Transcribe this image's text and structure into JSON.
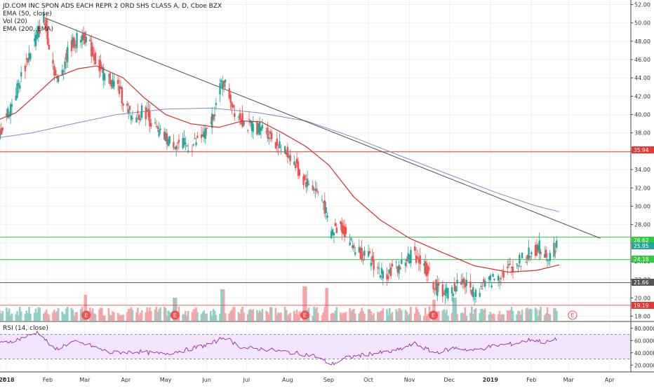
{
  "legend": {
    "title": "JD.COM INC SPON ADS EACH REPR 2 ORD SHS CLASS A, D, Cboe BZX",
    "ema50": "EMA (50, close)",
    "vol": "Vol (20)",
    "ema200": "EMA (200, EMA)",
    "rsi": "RSI (14, close)"
  },
  "price_axis": {
    "ticks": [
      "52.00",
      "50.00",
      "48.00",
      "46.00",
      "44.00",
      "42.00",
      "40.00",
      "38.00",
      "36.00",
      "34.00",
      "32.00",
      "30.00",
      "28.00",
      "26.00",
      "24.00",
      "22.00",
      "20.00",
      "18.00"
    ]
  },
  "rsi_axis": {
    "ticks": [
      "80.0000",
      "60.0000",
      "40.0000",
      "20.0000"
    ]
  },
  "time_axis": {
    "labels": [
      "7",
      "2018",
      "Feb",
      "Mar",
      "Apr",
      "May",
      "Jun",
      "Jul",
      "Aug",
      "Sep",
      "Oct",
      "Nov",
      "Dec",
      "2019",
      "Feb",
      "Mar",
      "Apr"
    ],
    "bold": [
      "2018",
      "2019"
    ]
  },
  "price_labels": [
    {
      "text": "35.94",
      "color": "#e53935"
    },
    {
      "text": "26.62",
      "color": "#2ecc40"
    },
    {
      "text": "25.95",
      "color": "#26a69a"
    },
    {
      "text": "24.18",
      "color": "#2ecc40"
    },
    {
      "text": "21.66",
      "color": "#555555"
    },
    {
      "text": "19.19",
      "color": "#e53935"
    }
  ],
  "earnings": [
    {
      "label": "E",
      "date": "2018-03-02"
    },
    {
      "label": "E",
      "date": "2018-05-08"
    },
    {
      "label": "E",
      "date": "2018-08-14"
    },
    {
      "label": "E",
      "date": "2018-11-19"
    },
    {
      "label": "E",
      "date": "2019-03-04"
    }
  ],
  "chart_data": {
    "type": "candlestick",
    "title": "JD.COM INC SPON ADS EACH REPR 2 ORD SHS CLASS A, D, Cboe BZX",
    "ylim": [
      17.5,
      52.5
    ],
    "x_range": [
      "2017-12-27",
      "2019-04-17"
    ],
    "price_path": [
      {
        "date": "2017-12-27",
        "close": 38.0
      },
      {
        "date": "2018-01-08",
        "close": 42.5
      },
      {
        "date": "2018-01-19",
        "close": 47.0
      },
      {
        "date": "2018-01-29",
        "close": 50.5
      },
      {
        "date": "2018-02-08",
        "close": 43.5
      },
      {
        "date": "2018-02-18",
        "close": 47.5
      },
      {
        "date": "2018-02-28",
        "close": 48.8
      },
      {
        "date": "2018-03-14",
        "close": 44.5
      },
      {
        "date": "2018-03-26",
        "close": 43.0
      },
      {
        "date": "2018-04-05",
        "close": 39.5
      },
      {
        "date": "2018-04-15",
        "close": 40.5
      },
      {
        "date": "2018-04-25",
        "close": 38.0
      },
      {
        "date": "2018-05-05",
        "close": 37.0
      },
      {
        "date": "2018-05-20",
        "close": 36.5
      },
      {
        "date": "2018-06-01",
        "close": 38.0
      },
      {
        "date": "2018-06-09",
        "close": 41.5
      },
      {
        "date": "2018-06-13",
        "close": 44.0
      },
      {
        "date": "2018-06-22",
        "close": 40.5
      },
      {
        "date": "2018-07-01",
        "close": 38.8
      },
      {
        "date": "2018-07-15",
        "close": 38.5
      },
      {
        "date": "2018-07-25",
        "close": 36.5
      },
      {
        "date": "2018-08-03",
        "close": 35.5
      },
      {
        "date": "2018-08-12",
        "close": 33.0
      },
      {
        "date": "2018-08-21",
        "close": 32.0
      },
      {
        "date": "2018-08-28",
        "close": 30.5
      },
      {
        "date": "2018-09-02",
        "close": 27.0
      },
      {
        "date": "2018-09-10",
        "close": 28.0
      },
      {
        "date": "2018-09-20",
        "close": 25.5
      },
      {
        "date": "2018-09-30",
        "close": 24.5
      },
      {
        "date": "2018-10-12",
        "close": 22.5
      },
      {
        "date": "2018-10-25",
        "close": 23.5
      },
      {
        "date": "2018-11-04",
        "close": 25.0
      },
      {
        "date": "2018-11-14",
        "close": 23.0
      },
      {
        "date": "2018-11-21",
        "close": 21.0
      },
      {
        "date": "2018-12-01",
        "close": 20.5
      },
      {
        "date": "2018-12-10",
        "close": 22.0
      },
      {
        "date": "2018-12-20",
        "close": 20.5
      },
      {
        "date": "2018-12-28",
        "close": 21.5
      },
      {
        "date": "2019-01-08",
        "close": 22.5
      },
      {
        "date": "2019-01-18",
        "close": 23.5
      },
      {
        "date": "2019-01-28",
        "close": 24.5
      },
      {
        "date": "2019-02-07",
        "close": 25.5
      },
      {
        "date": "2019-02-14",
        "close": 24.5
      },
      {
        "date": "2019-02-20",
        "close": 25.95
      }
    ],
    "ema50": [
      {
        "date": "2017-12-27",
        "value": 39.5
      },
      {
        "date": "2018-01-08",
        "value": 40.2
      },
      {
        "date": "2018-01-22",
        "value": 42.0
      },
      {
        "date": "2018-02-06",
        "value": 44.0
      },
      {
        "date": "2018-02-24",
        "value": 45.0
      },
      {
        "date": "2018-03-10",
        "value": 45.3
      },
      {
        "date": "2018-03-30",
        "value": 44.0
      },
      {
        "date": "2018-04-15",
        "value": 41.8
      },
      {
        "date": "2018-05-01",
        "value": 40.0
      },
      {
        "date": "2018-05-20",
        "value": 39.0
      },
      {
        "date": "2018-06-10",
        "value": 38.6
      },
      {
        "date": "2018-06-28",
        "value": 39.3
      },
      {
        "date": "2018-07-12",
        "value": 39.2
      },
      {
        "date": "2018-07-28",
        "value": 38.0
      },
      {
        "date": "2018-08-15",
        "value": 36.5
      },
      {
        "date": "2018-09-01",
        "value": 34.5
      },
      {
        "date": "2018-09-20",
        "value": 31.0
      },
      {
        "date": "2018-10-10",
        "value": 28.5
      },
      {
        "date": "2018-11-01",
        "value": 26.5
      },
      {
        "date": "2018-11-25",
        "value": 25.0
      },
      {
        "date": "2018-12-20",
        "value": 23.5
      },
      {
        "date": "2019-01-15",
        "value": 22.8
      },
      {
        "date": "2019-02-05",
        "value": 23.0
      },
      {
        "date": "2019-02-22",
        "value": 23.6
      }
    ],
    "ema200": [
      {
        "date": "2017-12-27",
        "value": 37.5
      },
      {
        "date": "2018-01-20",
        "value": 38.0
      },
      {
        "date": "2018-02-20",
        "value": 39.0
      },
      {
        "date": "2018-03-25",
        "value": 40.0
      },
      {
        "date": "2018-05-01",
        "value": 40.6
      },
      {
        "date": "2018-06-05",
        "value": 40.7
      },
      {
        "date": "2018-07-10",
        "value": 40.2
      },
      {
        "date": "2018-08-15",
        "value": 39.3
      },
      {
        "date": "2018-09-20",
        "value": 37.5
      },
      {
        "date": "2018-10-25",
        "value": 35.5
      },
      {
        "date": "2018-11-30",
        "value": 33.5
      },
      {
        "date": "2019-01-05",
        "value": 31.5
      },
      {
        "date": "2019-02-05",
        "value": 30.0
      },
      {
        "date": "2019-02-22",
        "value": 29.4
      }
    ],
    "trendline": [
      {
        "date": "2018-01-29",
        "value": 50.6
      },
      {
        "date": "2019-03-25",
        "value": 26.5
      }
    ],
    "hlines": [
      {
        "value": 35.94,
        "color": "#e53935"
      },
      {
        "value": 26.62,
        "color": "#2ecc40"
      },
      {
        "value": 24.18,
        "color": "#2ecc40"
      },
      {
        "value": 21.66,
        "color": "#555555"
      }
    ],
    "volume_spikes": [
      {
        "date": "2018-03-02",
        "rel": 0.62
      },
      {
        "date": "2018-05-08",
        "rel": 0.55
      },
      {
        "date": "2018-06-13",
        "rel": 0.75
      },
      {
        "date": "2018-08-14",
        "rel": 0.82
      },
      {
        "date": "2018-08-31",
        "rel": 0.78
      },
      {
        "date": "2018-11-19",
        "rel": 0.5
      },
      {
        "date": "2018-12-05",
        "rel": 0.55
      }
    ],
    "rsi": {
      "ylim": [
        10,
        90
      ],
      "band": [
        30,
        70
      ],
      "path": [
        {
          "date": "2017-12-27",
          "value": 55
        },
        {
          "date": "2018-01-10",
          "value": 62
        },
        {
          "date": "2018-01-25",
          "value": 74
        },
        {
          "date": "2018-02-06",
          "value": 45
        },
        {
          "date": "2018-02-20",
          "value": 58
        },
        {
          "date": "2018-03-05",
          "value": 52
        },
        {
          "date": "2018-03-20",
          "value": 40
        },
        {
          "date": "2018-04-10",
          "value": 42
        },
        {
          "date": "2018-04-28",
          "value": 38
        },
        {
          "date": "2018-05-15",
          "value": 44
        },
        {
          "date": "2018-06-05",
          "value": 55
        },
        {
          "date": "2018-06-14",
          "value": 66
        },
        {
          "date": "2018-06-28",
          "value": 48
        },
        {
          "date": "2018-07-15",
          "value": 46
        },
        {
          "date": "2018-08-05",
          "value": 40
        },
        {
          "date": "2018-08-20",
          "value": 36
        },
        {
          "date": "2018-09-03",
          "value": 21
        },
        {
          "date": "2018-09-15",
          "value": 32
        },
        {
          "date": "2018-09-30",
          "value": 38
        },
        {
          "date": "2018-10-20",
          "value": 42
        },
        {
          "date": "2018-11-05",
          "value": 55
        },
        {
          "date": "2018-11-20",
          "value": 40
        },
        {
          "date": "2018-12-05",
          "value": 48
        },
        {
          "date": "2018-12-20",
          "value": 44
        },
        {
          "date": "2019-01-05",
          "value": 52
        },
        {
          "date": "2019-01-20",
          "value": 55
        },
        {
          "date": "2019-02-01",
          "value": 62
        },
        {
          "date": "2019-02-12",
          "value": 57
        },
        {
          "date": "2019-02-22",
          "value": 63
        }
      ]
    }
  }
}
